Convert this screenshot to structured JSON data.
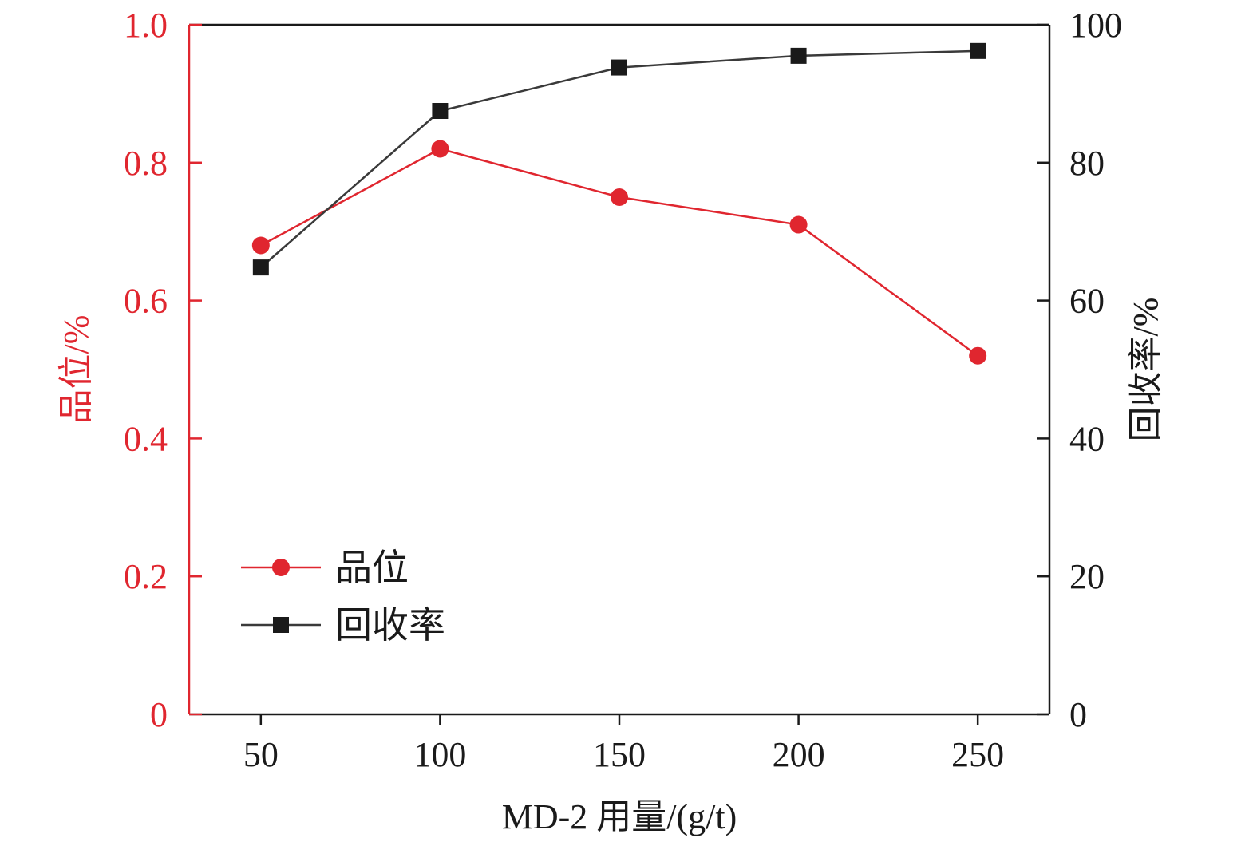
{
  "chart_data": {
    "type": "line",
    "title": "",
    "xlabel": "MD-2 用量/(g/t)",
    "x": [
      50,
      100,
      150,
      200,
      250
    ],
    "xlim": [
      30,
      270
    ],
    "x_ticks": [
      "50",
      "100",
      "150",
      "200",
      "250"
    ],
    "y_left": {
      "label": "品位/%",
      "lim": [
        0,
        1.0
      ],
      "ticks": [
        "0",
        "0.2",
        "0.4",
        "0.6",
        "0.8",
        "1.0"
      ],
      "color": "#e0262f"
    },
    "y_right": {
      "label": "回收率/%",
      "lim": [
        0,
        100
      ],
      "ticks": [
        "0",
        "20",
        "40",
        "60",
        "80",
        "100"
      ],
      "color": "#1a1a1a"
    },
    "series": [
      {
        "name": "品位",
        "axis": "left",
        "marker": "circle",
        "color": "#e0262f",
        "values": [
          0.68,
          0.82,
          0.75,
          0.71,
          0.52
        ]
      },
      {
        "name": "回收率",
        "axis": "right",
        "marker": "square",
        "color": "#3a3a3a",
        "values": [
          64.8,
          87.5,
          93.8,
          95.5,
          96.2
        ]
      }
    ],
    "grid": false,
    "legend_position": "lower-left"
  }
}
